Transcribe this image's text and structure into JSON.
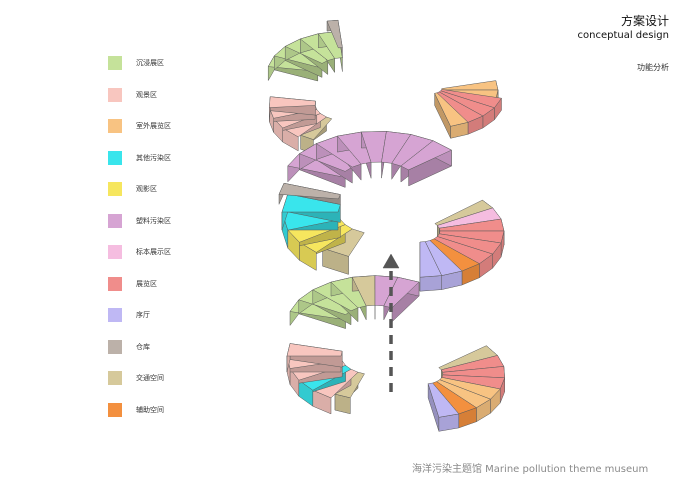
{
  "header": {
    "title_cn": "方案设计",
    "title_en": "conceptual design",
    "subtitle": "功能分析"
  },
  "legend": [
    {
      "key": "immersive",
      "label": "沉浸展区",
      "color": "#c5e29a"
    },
    {
      "key": "viewing",
      "label": "观景区",
      "color": "#f8c6bf"
    },
    {
      "key": "outdoor",
      "label": "室外展览区",
      "color": "#f8c382"
    },
    {
      "key": "other",
      "label": "其他污染区",
      "color": "#39e5ec"
    },
    {
      "key": "film",
      "label": "观影区",
      "color": "#f6e65e"
    },
    {
      "key": "plastic",
      "label": "塑料污染区",
      "color": "#d6a4d3"
    },
    {
      "key": "specimen",
      "label": "标本展示区",
      "color": "#f5bde0"
    },
    {
      "key": "exhibit",
      "label": "展览区",
      "color": "#f08d8b"
    },
    {
      "key": "lobby",
      "label": "序厅",
      "color": "#bfb8f4"
    },
    {
      "key": "storage",
      "label": "仓库",
      "color": "#bcb1a9"
    },
    {
      "key": "circulation",
      "label": "交通空间",
      "color": "#d6c99b"
    },
    {
      "key": "auxiliary",
      "label": "辅助空间",
      "color": "#f3903f"
    }
  ],
  "footer": {
    "text": "海洋污染主题馆 Marine pollution theme museum"
  }
}
